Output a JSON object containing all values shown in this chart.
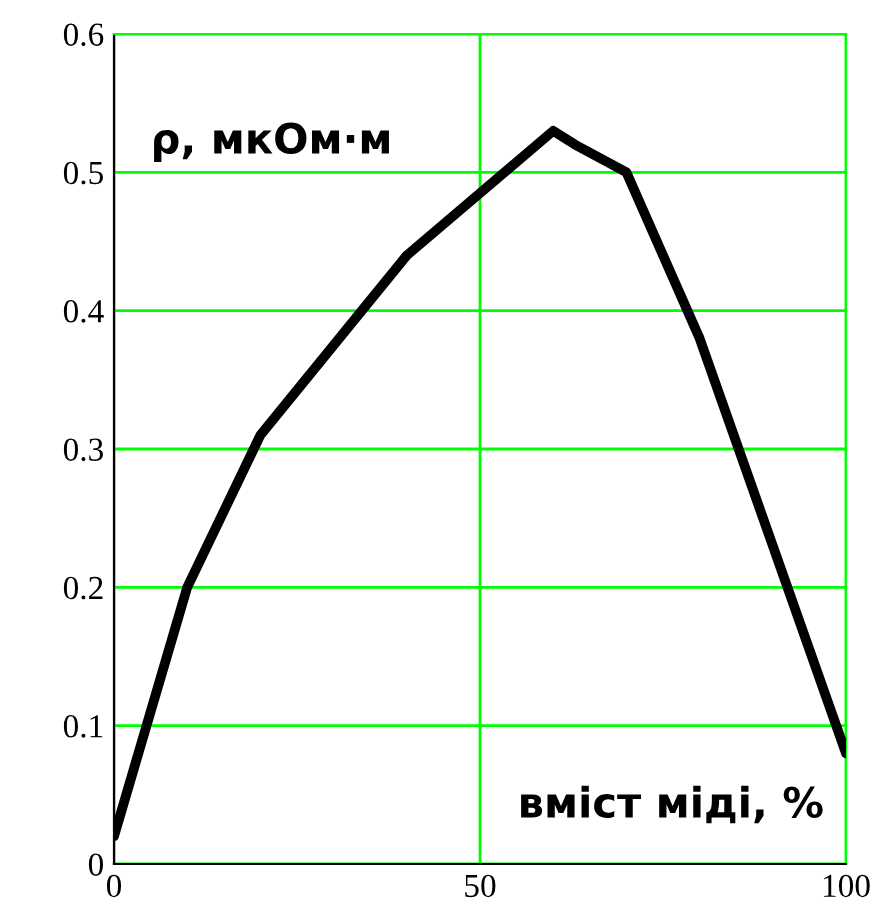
{
  "chart_data": {
    "type": "line",
    "xlabel": "вміст міді, %",
    "ylabel": "ρ, мкОм·м",
    "x": [
      0,
      10,
      20,
      40,
      60,
      63,
      70,
      80,
      100
    ],
    "series": [
      {
        "color": "#000000",
        "values": [
          0.02,
          0.2,
          0.31,
          0.44,
          0.53,
          0.52,
          0.5,
          0.38,
          0.08
        ]
      }
    ],
    "xlim": [
      0,
      100
    ],
    "ylim": [
      0,
      0.6
    ],
    "xticks": [
      0,
      50,
      100
    ],
    "yticks": [
      0,
      0.1,
      0.2,
      0.3,
      0.4,
      0.5,
      0.6
    ],
    "grid": true,
    "marker": "none",
    "line_style": "solid"
  }
}
